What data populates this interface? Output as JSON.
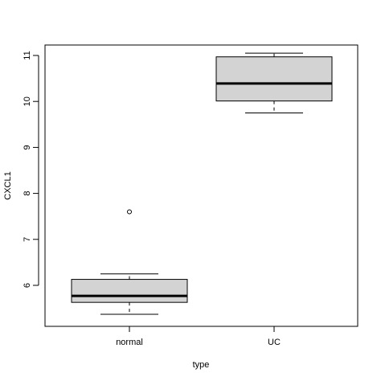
{
  "chart_data": {
    "type": "boxplot",
    "title": "",
    "xlabel": "type",
    "ylabel": "CXCL1",
    "ylim": [
      5.2,
      11.3
    ],
    "yticks": [
      6,
      7,
      8,
      9,
      10,
      11
    ],
    "ytick_labels": [
      "6",
      "7",
      "8",
      "9",
      "10",
      "11"
    ],
    "categories": [
      "normal",
      "UC"
    ],
    "boxes": [
      {
        "category": "normal",
        "whisker_low": 5.37,
        "q1": 5.63,
        "median": 5.77,
        "q3": 6.13,
        "whisker_high": 6.25,
        "outliers": [
          7.6
        ]
      },
      {
        "category": "UC",
        "whisker_low": 9.75,
        "q1": 10.01,
        "median": 10.39,
        "q3": 10.97,
        "whisker_high": 11.05,
        "outliers": []
      }
    ],
    "box_fill": "#d3d3d3",
    "grid": false,
    "legend": "none"
  }
}
